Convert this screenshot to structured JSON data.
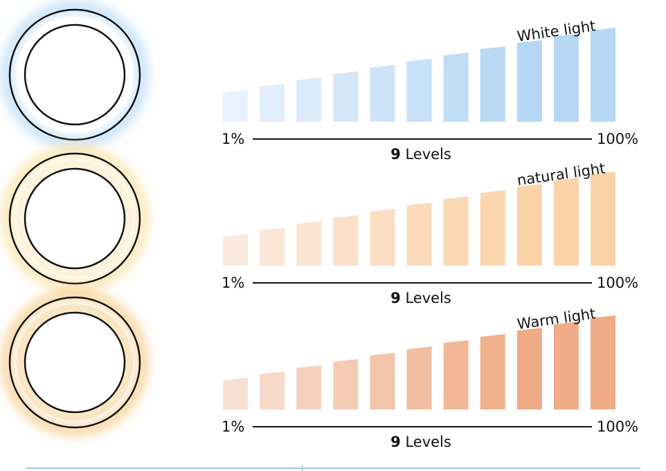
{
  "panels": [
    {
      "id": "white",
      "title": "White light",
      "min_label": "1%",
      "max_label": "100%",
      "levels_number": "9",
      "levels_word": " Levels",
      "glow": "#bcdcf6",
      "bar_from": "#e8f2fc",
      "bar_to": "#b5d7f4"
    },
    {
      "id": "natural",
      "title": "natural light",
      "min_label": "1%",
      "max_label": "100%",
      "levels_number": "9",
      "levels_word": " Levels",
      "glow": "#fbe3a6",
      "bar_from": "#fbeadf",
      "bar_to": "#fbd3a8"
    },
    {
      "id": "warm",
      "title": "Warm light",
      "min_label": "1%",
      "max_label": "100%",
      "levels_number": "9",
      "levels_word": " Levels",
      "glow": "#f6cf8f",
      "bar_from": "#f8e0d2",
      "bar_to": "#efac86"
    }
  ],
  "bar_levels": [
    1,
    2,
    3,
    4,
    5,
    6,
    7,
    8,
    9,
    10,
    11
  ],
  "footer_line_color": "#9fcad6"
}
